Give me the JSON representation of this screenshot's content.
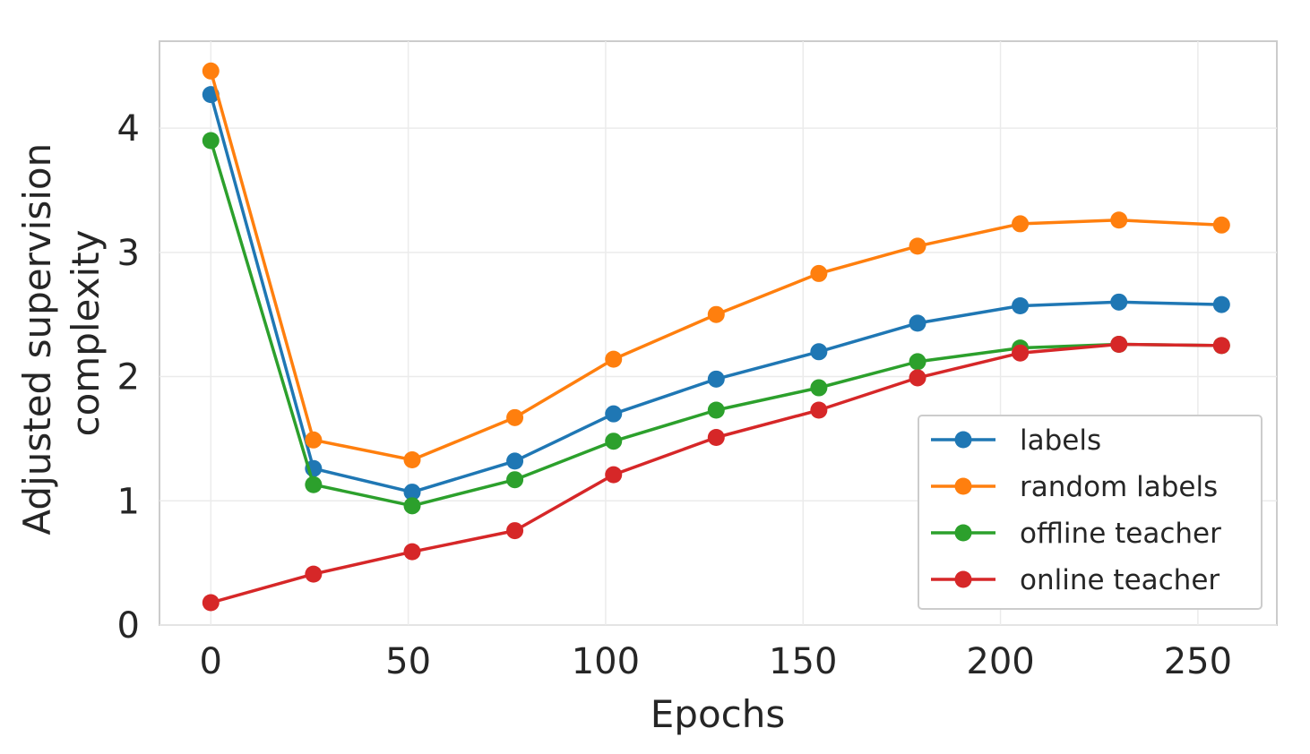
{
  "chart_data": {
    "type": "line",
    "xlabel": "Epochs",
    "ylabel_lines": [
      "Adjusted supervision",
      "complexity"
    ],
    "xlim": [
      -13,
      270
    ],
    "ylim": [
      0,
      4.7
    ],
    "xticks": [
      0,
      50,
      100,
      150,
      200,
      250
    ],
    "yticks": [
      0,
      1,
      2,
      3,
      4
    ],
    "grid": true,
    "legend_position": "lower right",
    "x": [
      0,
      26,
      51,
      77,
      102,
      128,
      154,
      179,
      205,
      230,
      256
    ],
    "series": [
      {
        "name": "labels",
        "color": "#1f77b4",
        "values": [
          4.27,
          1.26,
          1.07,
          1.32,
          1.7,
          1.98,
          2.2,
          2.43,
          2.57,
          2.6,
          2.58
        ]
      },
      {
        "name": "random labels",
        "color": "#ff7f0e",
        "values": [
          4.46,
          1.49,
          1.33,
          1.67,
          2.14,
          2.5,
          2.83,
          3.05,
          3.23,
          3.26,
          3.22
        ]
      },
      {
        "name": "offline teacher",
        "color": "#2ca02c",
        "values": [
          3.9,
          1.13,
          0.96,
          1.17,
          1.48,
          1.73,
          1.91,
          2.12,
          2.23,
          2.26,
          2.25
        ]
      },
      {
        "name": "online teacher",
        "color": "#d62728",
        "values": [
          0.18,
          0.41,
          0.59,
          0.76,
          1.21,
          1.51,
          1.73,
          1.99,
          2.19,
          2.26,
          2.25
        ]
      }
    ]
  }
}
